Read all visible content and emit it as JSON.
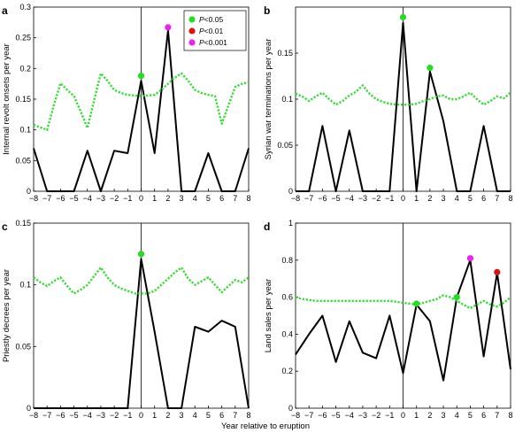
{
  "figure": {
    "xlabel": "Year relative to eruption",
    "legend": {
      "placement": "top-right of panel a",
      "entries": [
        {
          "p": "P",
          "label": "<0.05",
          "color": "#22dd22"
        },
        {
          "p": "P",
          "label": "<0.01",
          "color": "#e01010"
        },
        {
          "p": "P",
          "label": "<0.001",
          "color": "#ee22ee"
        }
      ]
    }
  },
  "chart_data": [
    {
      "type": "line",
      "panel": "a",
      "ylabel": "Internal revolt onsets per year",
      "xlim": [
        -8,
        8
      ],
      "ylim": [
        0,
        0.3
      ],
      "xticks": [
        -8,
        -7,
        -6,
        -5,
        -4,
        -3,
        -2,
        -1,
        0,
        1,
        2,
        3,
        4,
        5,
        6,
        7,
        8
      ],
      "yticks": [
        0,
        0.05,
        0.1,
        0.15,
        0.2,
        0.25,
        0.3
      ],
      "ytick_labels": [
        "0",
        "0.05",
        "0.1",
        "0.15",
        "0.2",
        "0.25",
        "0.3"
      ],
      "eruption_line": 0,
      "series": [
        {
          "style": "solid",
          "color": "#000000",
          "x": [
            -8,
            -7,
            -6,
            -5,
            -4,
            -3,
            -2,
            -1,
            0,
            1,
            2,
            3,
            4,
            5,
            6,
            7,
            8
          ],
          "y": [
            0.07,
            0,
            0,
            0,
            0.066,
            0,
            0.066,
            0.062,
            0.18,
            0.062,
            0.262,
            0,
            0,
            0.062,
            0,
            0,
            0.07
          ]
        },
        {
          "style": "dotted",
          "color": "#33dd33",
          "x": [
            -8,
            -7.5,
            -7,
            -6.5,
            -6,
            -5.5,
            -5,
            -4.5,
            -4,
            -3.5,
            -3,
            -2.5,
            -2,
            -1.5,
            -1,
            -0.5,
            0,
            0.5,
            1,
            1.5,
            2,
            2.5,
            3,
            3.5,
            4,
            4.5,
            5,
            5.5,
            6,
            6.5,
            7,
            7.5,
            8
          ],
          "y": [
            0.108,
            0.104,
            0.1,
            0.14,
            0.176,
            0.165,
            0.155,
            0.13,
            0.103,
            0.148,
            0.192,
            0.18,
            0.165,
            0.16,
            0.157,
            0.156,
            0.155,
            0.156,
            0.157,
            0.165,
            0.175,
            0.185,
            0.192,
            0.18,
            0.165,
            0.16,
            0.157,
            0.155,
            0.11,
            0.14,
            0.17,
            0.175,
            0.178
          ]
        }
      ],
      "markers": [
        {
          "x": 0,
          "y": 0.188,
          "level": "P<0.05"
        },
        {
          "x": 2,
          "y": 0.267,
          "level": "P<0.001"
        }
      ]
    },
    {
      "type": "line",
      "panel": "b",
      "ylabel": "Syrian war terminations per year",
      "xlim": [
        -8,
        8
      ],
      "ylim": [
        0,
        0.2
      ],
      "xticks": [
        -8,
        -7,
        -6,
        -5,
        -4,
        -3,
        -2,
        -1,
        0,
        1,
        2,
        3,
        4,
        5,
        6,
        7,
        8
      ],
      "yticks": [
        0,
        0.05,
        0.1,
        0.15
      ],
      "ytick_labels": [
        "0",
        "0.05",
        "0.1",
        "0.15"
      ],
      "eruption_line": 0,
      "series": [
        {
          "style": "solid",
          "color": "#000000",
          "x": [
            -8,
            -7,
            -6,
            -5,
            -4,
            -3,
            -2,
            -1,
            0,
            1,
            2,
            3,
            4,
            5,
            6,
            7,
            8
          ],
          "y": [
            0,
            0,
            0.071,
            0,
            0.066,
            0,
            0,
            0,
            0.183,
            0,
            0.13,
            0.076,
            0,
            0,
            0.071,
            0,
            0
          ]
        },
        {
          "style": "dotted",
          "color": "#33dd33",
          "x": [
            -8,
            -7.5,
            -7,
            -6.5,
            -6,
            -5.5,
            -5,
            -4.5,
            -4,
            -3.5,
            -3,
            -2.5,
            -2,
            -1.5,
            -1,
            -0.5,
            0,
            0.5,
            1,
            1.5,
            2,
            2.5,
            3,
            3.5,
            4,
            4.5,
            5,
            5.5,
            6,
            6.5,
            7,
            7.5,
            8
          ],
          "y": [
            0.106,
            0.103,
            0.098,
            0.103,
            0.107,
            0.1,
            0.094,
            0.098,
            0.104,
            0.108,
            0.115,
            0.106,
            0.1,
            0.097,
            0.095,
            0.094,
            0.094,
            0.094,
            0.095,
            0.098,
            0.1,
            0.103,
            0.104,
            0.1,
            0.1,
            0.103,
            0.107,
            0.1,
            0.094,
            0.098,
            0.103,
            0.101,
            0.107
          ]
        }
      ],
      "markers": [
        {
          "x": 0,
          "y": 0.189,
          "level": "P<0.05"
        },
        {
          "x": 2,
          "y": 0.134,
          "level": "P<0.05"
        }
      ]
    },
    {
      "type": "line",
      "panel": "c",
      "ylabel": "Priestly decrees per year",
      "xlim": [
        -8,
        8
      ],
      "ylim": [
        0,
        0.15
      ],
      "xticks": [
        -8,
        -7,
        -6,
        -5,
        -4,
        -3,
        -2,
        -1,
        0,
        1,
        2,
        3,
        4,
        5,
        6,
        7,
        8
      ],
      "yticks": [
        0,
        0.05,
        0.1,
        0.15
      ],
      "ytick_labels": [
        "0",
        "0.05",
        "0.1",
        "0.15"
      ],
      "eruption_line": 0,
      "series": [
        {
          "style": "solid",
          "color": "#000000",
          "x": [
            -8,
            -7,
            -6,
            -5,
            -4,
            -3,
            -2,
            -1,
            0,
            1,
            2,
            3,
            4,
            5,
            6,
            7,
            8
          ],
          "y": [
            0,
            0,
            0,
            0,
            0,
            0,
            0,
            0,
            0.121,
            0.062,
            0,
            0,
            0.066,
            0.062,
            0.071,
            0.066,
            0
          ]
        },
        {
          "style": "dotted",
          "color": "#33dd33",
          "x": [
            -8,
            -7.5,
            -7,
            -6.5,
            -6,
            -5.5,
            -5,
            -4.5,
            -4,
            -3.5,
            -3,
            -2.5,
            -2,
            -1.5,
            -1,
            -0.5,
            0,
            0.5,
            1,
            1.5,
            2,
            2.5,
            3,
            3.5,
            4,
            4.5,
            5,
            5.5,
            6,
            6.5,
            7,
            7.5,
            8
          ],
          "y": [
            0.106,
            0.102,
            0.099,
            0.103,
            0.106,
            0.099,
            0.093,
            0.096,
            0.1,
            0.107,
            0.114,
            0.106,
            0.1,
            0.097,
            0.095,
            0.093,
            0.093,
            0.093,
            0.095,
            0.1,
            0.105,
            0.11,
            0.114,
            0.105,
            0.1,
            0.103,
            0.106,
            0.1,
            0.094,
            0.099,
            0.104,
            0.102,
            0.106
          ]
        }
      ],
      "markers": [
        {
          "x": 0,
          "y": 0.125,
          "level": "P<0.05"
        }
      ]
    },
    {
      "type": "line",
      "panel": "d",
      "ylabel": "Land sales per year",
      "xlim": [
        -8,
        8
      ],
      "ylim": [
        0,
        1
      ],
      "xticks": [
        -8,
        -7,
        -6,
        -5,
        -4,
        -3,
        -2,
        -1,
        0,
        1,
        2,
        3,
        4,
        5,
        6,
        7,
        8
      ],
      "yticks": [
        0,
        0.2,
        0.4,
        0.6,
        0.8,
        1
      ],
      "ytick_labels": [
        "0",
        "0.2",
        "0.4",
        "0.6",
        "0.8",
        "1"
      ],
      "eruption_line": 0,
      "series": [
        {
          "style": "solid",
          "color": "#000000",
          "x": [
            -8,
            -7,
            -6,
            -5,
            -4,
            -3,
            -2,
            -1,
            0,
            1,
            2,
            3,
            4,
            5,
            6,
            7,
            8
          ],
          "y": [
            0.29,
            0.4,
            0.5,
            0.25,
            0.47,
            0.3,
            0.27,
            0.5,
            0.19,
            0.56,
            0.47,
            0.15,
            0.6,
            0.8,
            0.28,
            0.73,
            0.21
          ]
        },
        {
          "style": "dotted",
          "color": "#33dd33",
          "x": [
            -8,
            -7.5,
            -7,
            -6.5,
            -6,
            -5.5,
            -5,
            -4.5,
            -4,
            -3.5,
            -3,
            -2.5,
            -2,
            -1.5,
            -1,
            -0.5,
            0,
            0.5,
            1,
            1.5,
            2,
            2.5,
            3,
            3.5,
            4,
            4.5,
            5,
            5.5,
            6,
            6.5,
            7,
            7.5,
            8
          ],
          "y": [
            0.6,
            0.59,
            0.585,
            0.58,
            0.58,
            0.58,
            0.58,
            0.58,
            0.58,
            0.58,
            0.58,
            0.58,
            0.58,
            0.58,
            0.58,
            0.575,
            0.57,
            0.565,
            0.56,
            0.57,
            0.58,
            0.59,
            0.61,
            0.6,
            0.58,
            0.56,
            0.54,
            0.56,
            0.58,
            0.56,
            0.55,
            0.57,
            0.6
          ]
        }
      ],
      "markers": [
        {
          "x": 1,
          "y": 0.565,
          "level": "P<0.05"
        },
        {
          "x": 4,
          "y": 0.6,
          "level": "P<0.05"
        },
        {
          "x": 5,
          "y": 0.81,
          "level": "P<0.001"
        },
        {
          "x": 7,
          "y": 0.735,
          "level": "P<0.01"
        }
      ]
    }
  ]
}
